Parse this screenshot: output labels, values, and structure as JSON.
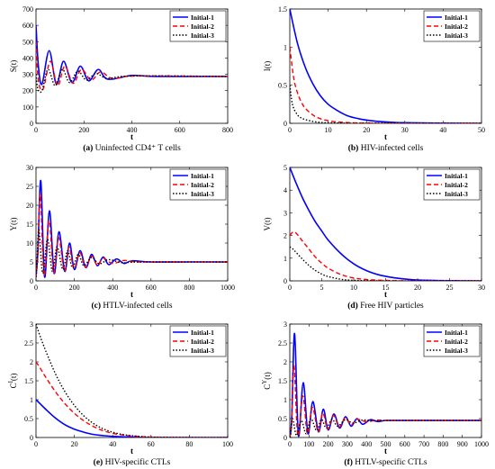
{
  "figure": {
    "legend_labels": [
      "Initial-1",
      "Initial-2",
      "Initial-3"
    ]
  },
  "styles": {
    "series_colors": [
      "#0000ff",
      "#ff0000",
      "#000000"
    ],
    "series_dash": [
      "solid",
      "dashed",
      "dotted"
    ]
  },
  "chart_data": [
    {
      "type": "line",
      "caption_tag": "(a)",
      "caption_text": "Uninfected CD4⁺ T cells",
      "xlabel": "t",
      "ylabel": "S(t)",
      "xlim": [
        0,
        800
      ],
      "ylim": [
        0,
        700
      ],
      "xticks": [
        0,
        200,
        400,
        600,
        800
      ],
      "yticks": [
        0,
        100,
        200,
        300,
        400,
        500,
        600,
        700
      ],
      "legend_position": "top-right",
      "grid": false,
      "series": [
        {
          "name": "Initial-1",
          "x": [
            0,
            10,
            25,
            55,
            85,
            115,
            150,
            185,
            220,
            260,
            300,
            400,
            500,
            800
          ],
          "y": [
            600,
            350,
            240,
            445,
            240,
            380,
            250,
            350,
            260,
            330,
            270,
            293,
            287,
            287
          ]
        },
        {
          "name": "Initial-2",
          "x": [
            0,
            10,
            30,
            60,
            90,
            120,
            155,
            190,
            230,
            270,
            320,
            420,
            800
          ],
          "y": [
            500,
            260,
            210,
            380,
            230,
            350,
            245,
            330,
            265,
            315,
            275,
            290,
            287
          ]
        },
        {
          "name": "Initial-3",
          "x": [
            0,
            8,
            25,
            50,
            80,
            110,
            140,
            175,
            210,
            250,
            300,
            400,
            800
          ],
          "y": [
            300,
            210,
            200,
            330,
            230,
            330,
            250,
            320,
            265,
            305,
            275,
            290,
            287
          ]
        }
      ]
    },
    {
      "type": "line",
      "caption_tag": "(b)",
      "caption_text": "HIV-infected cells",
      "xlabel": "t",
      "ylabel": "I(t)",
      "xlim": [
        0,
        50
      ],
      "ylim": [
        0,
        1.5
      ],
      "xticks": [
        0,
        10,
        20,
        30,
        40,
        50
      ],
      "yticks": [
        0,
        0.5,
        1,
        1.5
      ],
      "legend_position": "top-right",
      "grid": false,
      "series": [
        {
          "name": "Initial-1",
          "x": [
            0,
            2,
            4,
            6,
            8,
            10,
            12,
            15,
            18,
            22,
            26,
            30,
            40,
            50
          ],
          "y": [
            1.5,
            1.05,
            0.74,
            0.52,
            0.36,
            0.25,
            0.18,
            0.1,
            0.06,
            0.03,
            0.015,
            0.008,
            0.002,
            0
          ]
        },
        {
          "name": "Initial-2",
          "x": [
            0,
            1,
            2,
            3,
            4,
            6,
            8,
            10,
            12,
            15,
            20,
            30,
            50
          ],
          "y": [
            1.0,
            0.6,
            0.4,
            0.28,
            0.2,
            0.11,
            0.06,
            0.035,
            0.02,
            0.01,
            0.003,
            0,
            0
          ]
        },
        {
          "name": "Initial-3",
          "x": [
            0,
            0.5,
            1,
            2,
            3,
            4,
            6,
            8,
            10,
            15,
            20,
            50
          ],
          "y": [
            0.5,
            0.3,
            0.2,
            0.11,
            0.07,
            0.05,
            0.025,
            0.012,
            0.006,
            0.002,
            0,
            0
          ]
        }
      ]
    },
    {
      "type": "line",
      "caption_tag": "(c)",
      "caption_text": "HTLV-infected cells",
      "xlabel": "t",
      "ylabel": "Y(t)",
      "xlim": [
        0,
        1000
      ],
      "ylim": [
        0,
        30
      ],
      "xticks": [
        0,
        200,
        400,
        600,
        800,
        1000
      ],
      "yticks": [
        0,
        5,
        10,
        15,
        20,
        25,
        30
      ],
      "legend_position": "top-right",
      "grid": false,
      "series": [
        {
          "name": "Initial-1",
          "x": [
            0,
            10,
            25,
            45,
            70,
            95,
            120,
            150,
            175,
            200,
            230,
            260,
            290,
            320,
            350,
            380,
            420,
            460,
            500,
            600,
            800,
            1000
          ],
          "y": [
            1,
            8,
            26.5,
            1,
            18.5,
            2,
            13,
            2.5,
            10,
            3,
            8,
            3.5,
            7,
            4,
            6.3,
            4.3,
            5.8,
            4.6,
            5.3,
            5,
            5,
            5
          ]
        },
        {
          "name": "Initial-2",
          "x": [
            0,
            10,
            22,
            42,
            68,
            92,
            118,
            148,
            172,
            198,
            228,
            258,
            290,
            320,
            350,
            400,
            460,
            550,
            1000
          ],
          "y": [
            1,
            7,
            23,
            1.5,
            16,
            2,
            11.5,
            2.5,
            9,
            3.2,
            7.5,
            3.6,
            6.6,
            4.1,
            6,
            4.6,
            5.4,
            5,
            5
          ]
        },
        {
          "name": "Initial-3",
          "x": [
            0,
            5,
            15,
            35,
            60,
            85,
            110,
            140,
            165,
            190,
            220,
            250,
            290,
            330,
            380,
            450,
            550,
            1000
          ],
          "y": [
            1,
            5,
            13.5,
            2,
            11,
            2.5,
            9,
            3,
            8,
            3.5,
            7,
            4,
            6.2,
            4.5,
            5.6,
            4.8,
            5,
            5
          ]
        }
      ]
    },
    {
      "type": "line",
      "caption_tag": "(d)",
      "caption_text": "Free HIV particles",
      "xlabel": "t",
      "ylabel": "V(t)",
      "xlim": [
        0,
        30
      ],
      "ylim": [
        0,
        5
      ],
      "xticks": [
        0,
        5,
        10,
        15,
        20,
        25,
        30
      ],
      "yticks": [
        0,
        1,
        2,
        3,
        4,
        5
      ],
      "legend_position": "top-right",
      "grid": false,
      "series": [
        {
          "name": "Initial-1",
          "x": [
            0,
            1,
            2,
            3,
            4,
            5,
            6,
            8,
            10,
            12,
            14,
            16,
            18,
            20,
            25,
            30
          ],
          "y": [
            5,
            4.3,
            3.65,
            3.1,
            2.6,
            2.2,
            1.8,
            1.2,
            0.75,
            0.45,
            0.26,
            0.15,
            0.08,
            0.04,
            0.01,
            0
          ]
        },
        {
          "name": "Initial-2",
          "x": [
            0,
            0.5,
            1,
            2,
            3,
            4,
            5,
            6,
            8,
            10,
            12,
            15,
            20,
            30
          ],
          "y": [
            2,
            2.15,
            2.1,
            1.75,
            1.4,
            1.05,
            0.78,
            0.56,
            0.28,
            0.13,
            0.06,
            0.02,
            0,
            0
          ]
        },
        {
          "name": "Initial-3",
          "x": [
            0,
            0.5,
            1,
            2,
            3,
            4,
            5,
            6,
            8,
            10,
            15,
            30
          ],
          "y": [
            1.5,
            1.4,
            1.25,
            0.95,
            0.68,
            0.46,
            0.3,
            0.19,
            0.07,
            0.025,
            0,
            0
          ]
        }
      ]
    },
    {
      "type": "line",
      "caption_tag": "(e)",
      "caption_text": "HIV-specific CTLs",
      "xlabel": "t",
      "ylabel": "C^I(t)",
      "xlim": [
        0,
        100
      ],
      "ylim": [
        0,
        3
      ],
      "xticks": [
        0,
        20,
        40,
        60,
        80,
        100
      ],
      "yticks": [
        0,
        0.5,
        1,
        1.5,
        2,
        2.5,
        3
      ],
      "legend_position": "top-right",
      "grid": false,
      "series": [
        {
          "name": "Initial-1",
          "x": [
            0,
            2,
            5,
            10,
            15,
            20,
            25,
            30,
            35,
            40,
            50,
            60,
            80,
            100
          ],
          "y": [
            1.0,
            0.9,
            0.75,
            0.52,
            0.34,
            0.22,
            0.14,
            0.08,
            0.05,
            0.03,
            0.01,
            0,
            0,
            0
          ]
        },
        {
          "name": "Initial-2",
          "x": [
            0,
            2,
            5,
            10,
            15,
            20,
            25,
            30,
            35,
            40,
            45,
            50,
            60,
            80,
            100
          ],
          "y": [
            2.0,
            1.85,
            1.6,
            1.22,
            0.9,
            0.64,
            0.44,
            0.29,
            0.18,
            0.11,
            0.07,
            0.04,
            0.01,
            0,
            0
          ]
        },
        {
          "name": "Initial-3",
          "x": [
            0,
            2,
            5,
            10,
            15,
            20,
            25,
            30,
            35,
            40,
            45,
            50,
            60,
            80,
            100
          ],
          "y": [
            3.0,
            2.7,
            2.3,
            1.7,
            1.22,
            0.85,
            0.57,
            0.37,
            0.23,
            0.14,
            0.08,
            0.05,
            0.01,
            0,
            0
          ]
        }
      ]
    },
    {
      "type": "line",
      "caption_tag": "(f)",
      "caption_text": "HTLV-specific CTLs",
      "xlabel": "t",
      "ylabel": "C^Y(t)",
      "xlim": [
        0,
        1000
      ],
      "ylim": [
        0,
        3
      ],
      "xticks": [
        0,
        100,
        200,
        300,
        400,
        500,
        600,
        700,
        800,
        900,
        1000
      ],
      "yticks": [
        0,
        0.5,
        1,
        1.5,
        2,
        2.5,
        3
      ],
      "legend_position": "top-right",
      "grid": false,
      "series": [
        {
          "name": "Initial-1",
          "x": [
            0,
            10,
            25,
            45,
            70,
            95,
            120,
            150,
            175,
            200,
            230,
            260,
            290,
            320,
            350,
            380,
            420,
            460,
            500,
            600,
            800,
            1000
          ],
          "y": [
            0,
            0.5,
            2.75,
            0.05,
            1.45,
            0.1,
            0.95,
            0.15,
            0.75,
            0.2,
            0.62,
            0.25,
            0.55,
            0.3,
            0.5,
            0.35,
            0.47,
            0.42,
            0.45,
            0.45,
            0.45,
            0.45
          ]
        },
        {
          "name": "Initial-2",
          "x": [
            0,
            10,
            22,
            42,
            68,
            92,
            118,
            148,
            172,
            198,
            228,
            258,
            290,
            320,
            350,
            400,
            460,
            550,
            1000
          ],
          "y": [
            0,
            0.4,
            1.9,
            0.05,
            1.1,
            0.1,
            0.8,
            0.15,
            0.65,
            0.22,
            0.58,
            0.28,
            0.52,
            0.33,
            0.48,
            0.42,
            0.46,
            0.45,
            0.45
          ]
        },
        {
          "name": "Initial-3",
          "x": [
            0,
            5,
            15,
            35,
            60,
            85,
            110,
            140,
            165,
            190,
            220,
            250,
            290,
            330,
            380,
            450,
            550,
            1000
          ],
          "y": [
            0,
            0.1,
            0.5,
            0.05,
            0.45,
            0.1,
            0.5,
            0.18,
            0.48,
            0.25,
            0.48,
            0.3,
            0.47,
            0.38,
            0.46,
            0.44,
            0.45,
            0.45
          ]
        }
      ]
    }
  ]
}
